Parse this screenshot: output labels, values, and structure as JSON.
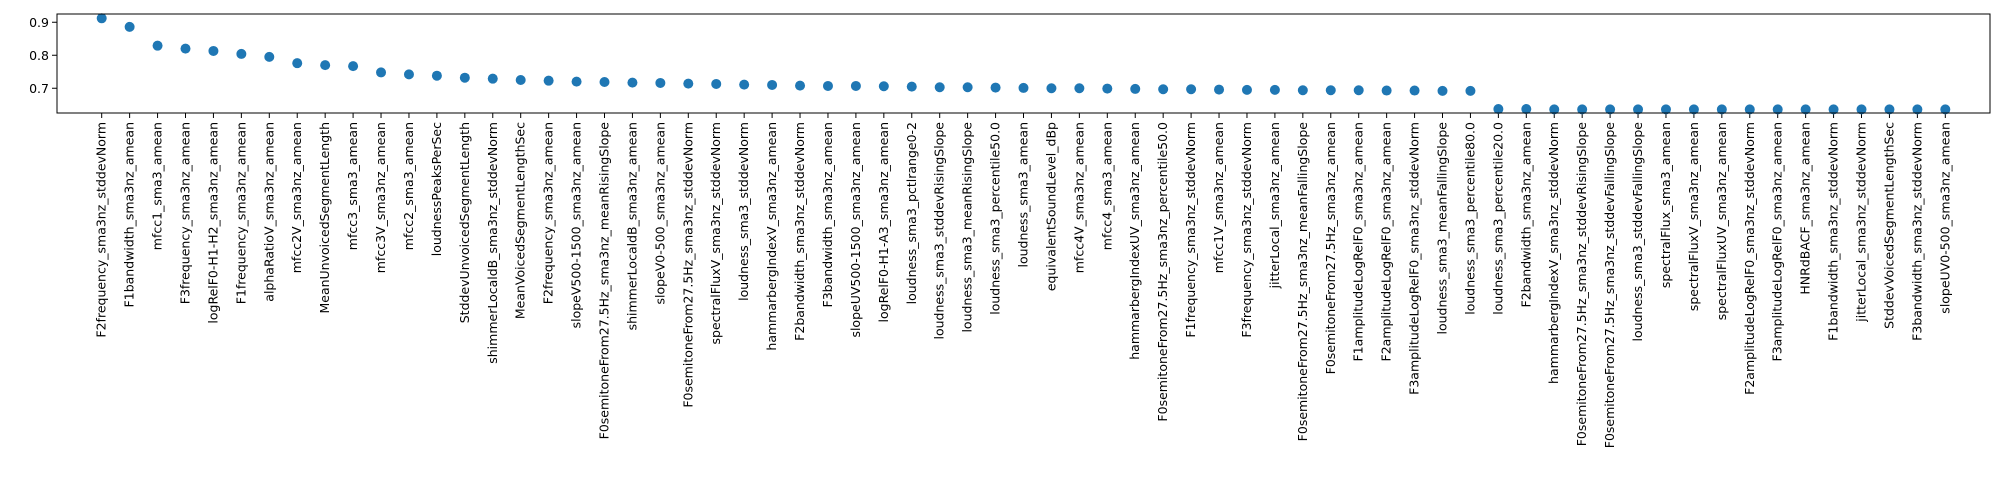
{
  "chart_data": {
    "type": "scatter",
    "title": "",
    "xlabel": "",
    "ylabel": "",
    "ylim": [
      0.625,
      0.925
    ],
    "yticks": [
      0.7,
      0.8,
      0.9
    ],
    "ytick_labels": [
      "0.7",
      "0.8",
      "0.9"
    ],
    "grid": false,
    "marker_color": "#1f77b4",
    "categories": [
      "F2frequency_sma3nz_stddevNorm",
      "F1bandwidth_sma3nz_amean",
      "mfcc1_sma3_amean",
      "F3frequency_sma3nz_amean",
      "logRelF0-H1-H2_sma3nz_amean",
      "F1frequency_sma3nz_amean",
      "alphaRatioV_sma3nz_amean",
      "mfcc2V_sma3nz_amean",
      "MeanUnvoicedSegmentLength",
      "mfcc3_sma3_amean",
      "mfcc3V_sma3nz_amean",
      "mfcc2_sma3_amean",
      "loudnessPeaksPerSec",
      "StddevUnvoicedSegmentLength",
      "shimmerLocaldB_sma3nz_stddevNorm",
      "MeanVoicedSegmentLengthSec",
      "F2frequency_sma3nz_amean",
      "slopeV500-1500_sma3nz_amean",
      "F0semitoneFrom27.5Hz_sma3nz_meanRisingSlope",
      "shimmerLocaldB_sma3nz_amean",
      "slopeV0-500_sma3nz_amean",
      "F0semitoneFrom27.5Hz_sma3nz_stddevNorm",
      "spectralFluxV_sma3nz_stddevNorm",
      "loudness_sma3_stddevNorm",
      "hammarbergIndexV_sma3nz_amean",
      "F2bandwidth_sma3nz_stddevNorm",
      "F3bandwidth_sma3nz_amean",
      "slopeUV500-1500_sma3nz_amean",
      "logRelF0-H1-A3_sma3nz_amean",
      "loudness_sma3_pctlrange0-2",
      "loudness_sma3_stddevRisingSlope",
      "loudness_sma3_meanRisingSlope",
      "loudness_sma3_percentile50.0",
      "loudness_sma3_amean",
      "equivalentSoundLevel_dBp",
      "mfcc4V_sma3nz_amean",
      "mfcc4_sma3_amean",
      "hammarbergIndexUV_sma3nz_amean",
      "F0semitoneFrom27.5Hz_sma3nz_percentile50.0",
      "F1frequency_sma3nz_stddevNorm",
      "mfcc1V_sma3nz_amean",
      "F3frequency_sma3nz_stddevNorm",
      "jitterLocal_sma3nz_amean",
      "F0semitoneFrom27.5Hz_sma3nz_meanFallingSlope",
      "F0semitoneFrom27.5Hz_sma3nz_amean",
      "F1amplitudeLogRelF0_sma3nz_amean",
      "F2amplitudeLogRelF0_sma3nz_amean",
      "F3amplitudeLogRelF0_sma3nz_stddevNorm",
      "loudness_sma3_meanFallingSlope",
      "loudness_sma3_percentile80.0",
      "loudness_sma3_percentile20.0",
      "F2bandwidth_sma3nz_amean",
      "hammarbergIndexV_sma3nz_stddevNorm",
      "F0semitoneFrom27.5Hz_sma3nz_stddevRisingSlope",
      "F0semitoneFrom27.5Hz_sma3nz_stddevFallingSlope",
      "loudness_sma3_stddevFallingSlope",
      "spectralFlux_sma3_amean",
      "spectralFluxV_sma3nz_amean",
      "spectralFluxUV_sma3nz_amean",
      "F2amplitudeLogRelF0_sma3nz_stddevNorm",
      "F3amplitudeLogRelF0_sma3nz_amean",
      "HNRdBACF_sma3nz_amean",
      "F1bandwidth_sma3nz_stddevNorm",
      "jitterLocal_sma3nz_stddevNorm",
      "StddevVoicedSegmentLengthSec",
      "F3bandwidth_sma3nz_stddevNorm",
      "slopeUV0-500_sma3nz_amean"
    ],
    "values": [
      0.912,
      0.886,
      0.829,
      0.82,
      0.813,
      0.804,
      0.795,
      0.776,
      0.77,
      0.767,
      0.748,
      0.742,
      0.738,
      0.732,
      0.729,
      0.725,
      0.723,
      0.72,
      0.719,
      0.717,
      0.716,
      0.714,
      0.713,
      0.711,
      0.71,
      0.708,
      0.707,
      0.707,
      0.706,
      0.705,
      0.703,
      0.703,
      0.702,
      0.701,
      0.7,
      0.7,
      0.699,
      0.698,
      0.697,
      0.697,
      0.696,
      0.695,
      0.695,
      0.694,
      0.694,
      0.694,
      0.693,
      0.693,
      0.692,
      0.692,
      0.637,
      0.637,
      0.636,
      0.636,
      0.636,
      0.636,
      0.636,
      0.636,
      0.636,
      0.636,
      0.636,
      0.636,
      0.636,
      0.636,
      0.636,
      0.636,
      0.636
    ]
  }
}
